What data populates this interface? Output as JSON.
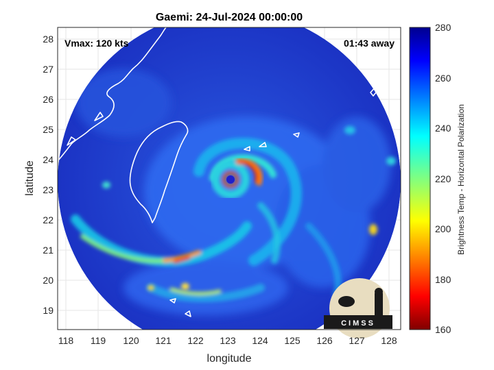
{
  "title": "Gaemi: 24-Jul-2024 00:00:00",
  "annotations": {
    "vmax": "Vmax: 120 kts",
    "time_away": "01:43 away"
  },
  "axes": {
    "xlabel": "longitude",
    "ylabel": "latitude",
    "x_ticks": [
      "118",
      "119",
      "120",
      "121",
      "122",
      "123",
      "124",
      "125",
      "126",
      "127",
      "128"
    ],
    "y_ticks": [
      "28",
      "27",
      "26",
      "25",
      "24",
      "23",
      "22",
      "21",
      "20",
      "19"
    ]
  },
  "colorbar": {
    "label": "Brightness Temp - Horizontal Polarization",
    "ticks": [
      "280",
      "260",
      "240",
      "220",
      "200",
      "180",
      "160"
    ],
    "range": [
      160,
      280
    ],
    "colormap": "jet"
  },
  "logo": {
    "text": "CIMSS"
  },
  "colors": {
    "background_field": "#1f3fd0",
    "coast": "#ffffff",
    "eye": "#1e1ecc",
    "eyewall": "#e03010"
  }
}
